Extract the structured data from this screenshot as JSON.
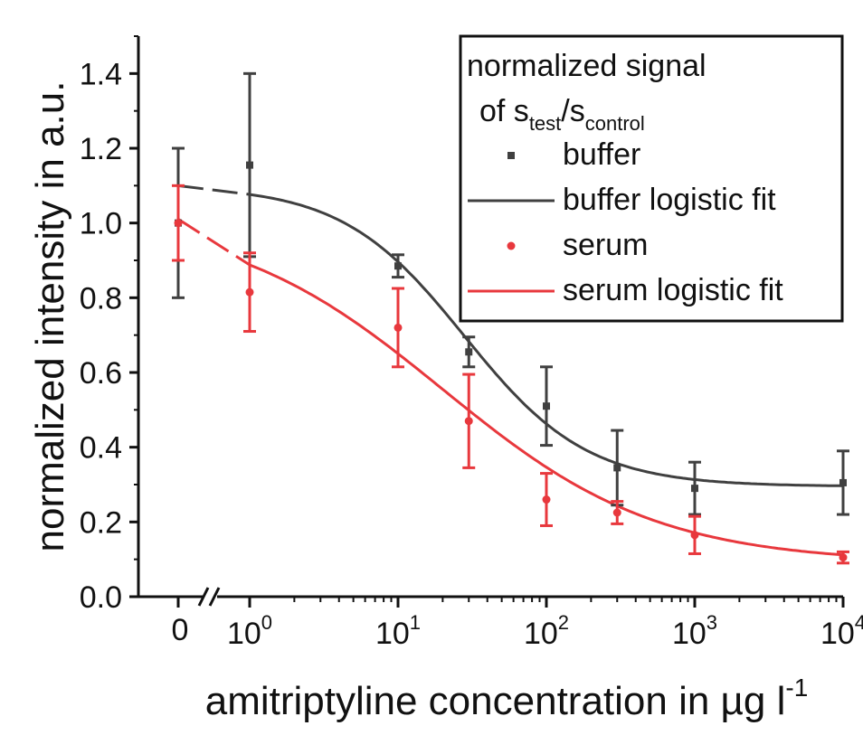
{
  "chart_data": {
    "type": "scatter",
    "title": "",
    "xlabel": "amitriptyline concentration in µg l",
    "xlabel_sup": "-1",
    "ylabel": "normalized intensity in a.u.",
    "ylim": [
      0.0,
      1.5
    ],
    "xscale": "log10 with broken axis at 0",
    "xlim_log": [
      0,
      4
    ],
    "y_ticks": [
      "0.0",
      "0.2",
      "0.4",
      "0.6",
      "0.8",
      "1.0",
      "1.2",
      "1.4"
    ],
    "x_ticks": [
      {
        "label": "0",
        "pos": "zero"
      },
      {
        "base": "10",
        "exp": "0",
        "pos": 0
      },
      {
        "base": "10",
        "exp": "1",
        "pos": 1
      },
      {
        "base": "10",
        "exp": "2",
        "pos": 2
      },
      {
        "base": "10",
        "exp": "3",
        "pos": 3
      },
      {
        "base": "10",
        "exp": "4",
        "pos": 4
      }
    ],
    "legend": {
      "position": "top-right",
      "title_line1": "normalized signal",
      "title_line2_prefix": "of s",
      "title_sub1": "test",
      "title_slash": "/s",
      "title_sub2": "control",
      "entries": [
        "buffer",
        "buffer logistic fit",
        "serum",
        "serum logistic fit"
      ]
    },
    "series": [
      {
        "name": "buffer",
        "color": "#404040",
        "marker": "square",
        "points": [
          {
            "x": 0,
            "y": 1.0,
            "err": 0.2
          },
          {
            "x": 1,
            "y": 1.155,
            "err": 0.245
          },
          {
            "x": 10,
            "y": 0.885,
            "err": 0.03
          },
          {
            "x": 30,
            "y": 0.655,
            "err": 0.04
          },
          {
            "x": 100,
            "y": 0.51,
            "err": 0.105
          },
          {
            "x": 300,
            "y": 0.345,
            "err": 0.1
          },
          {
            "x": 1000,
            "y": 0.29,
            "err": 0.07
          },
          {
            "x": 10000,
            "y": 0.305,
            "err": 0.085
          }
        ]
      },
      {
        "name": "serum",
        "color": "#e8383d",
        "marker": "circle",
        "points": [
          {
            "x": 0,
            "y": 1.0,
            "err": 0.1
          },
          {
            "x": 1,
            "y": 0.815,
            "err": 0.105
          },
          {
            "x": 10,
            "y": 0.72,
            "err": 0.105
          },
          {
            "x": 30,
            "y": 0.47,
            "err": 0.125
          },
          {
            "x": 100,
            "y": 0.26,
            "err": 0.07
          },
          {
            "x": 300,
            "y": 0.225,
            "err": 0.03
          },
          {
            "x": 1000,
            "y": 0.165,
            "err": 0.05
          },
          {
            "x": 10000,
            "y": 0.105,
            "err": 0.015
          }
        ]
      }
    ],
    "fits": [
      {
        "name": "buffer logistic fit",
        "color": "#404040",
        "A1": 1.1,
        "A2": 0.295,
        "x0": 28,
        "p": 1.05
      },
      {
        "name": "serum logistic fit",
        "color": "#e8383d",
        "A1": 1.02,
        "A2": 0.09,
        "x0": 20,
        "p": 0.6
      }
    ]
  }
}
